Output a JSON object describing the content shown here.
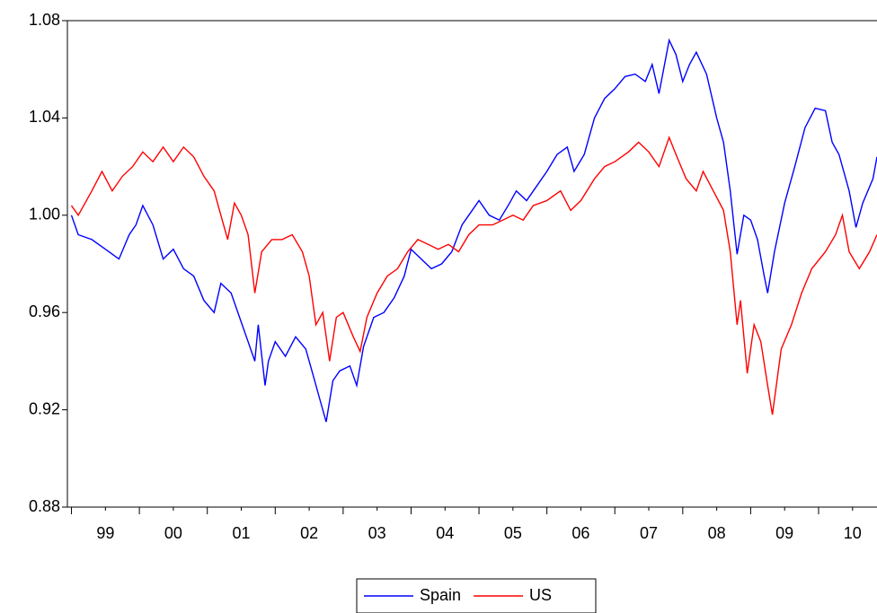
{
  "chart_data": {
    "type": "line",
    "xlim": [
      1998.94,
      2010.86
    ],
    "ylim": [
      0.88,
      1.08
    ],
    "yticks": [
      0.88,
      0.92,
      0.96,
      {
        "value": 1,
        "label": "1.00"
      },
      1.04,
      1.08
    ],
    "xticks": [
      {
        "value": 1999.5,
        "label": "99"
      },
      {
        "value": 2000.5,
        "label": "00"
      },
      {
        "value": 2001.5,
        "label": "01"
      },
      {
        "value": 2002.5,
        "label": "02"
      },
      {
        "value": 2003.5,
        "label": "03"
      },
      {
        "value": 2004.5,
        "label": "04"
      },
      {
        "value": 2005.5,
        "label": "05"
      },
      {
        "value": 2006.5,
        "label": "06"
      },
      {
        "value": 2007.5,
        "label": "07"
      },
      {
        "value": 2008.5,
        "label": "08"
      },
      {
        "value": 2009.5,
        "label": "09"
      },
      {
        "value": 2010.5,
        "label": "10"
      }
    ],
    "legend": "bottom",
    "series": [
      {
        "name": "Spain",
        "color": "#0000ff",
        "x": [
          1999.0,
          1999.1,
          1999.3,
          1999.5,
          1999.7,
          1999.85,
          1999.95,
          2000.05,
          2000.2,
          2000.35,
          2000.5,
          2000.65,
          2000.8,
          2000.95,
          2001.1,
          2001.2,
          2001.35,
          2001.5,
          2001.6,
          2001.7,
          2001.75,
          2001.85,
          2001.9,
          2002.0,
          2002.15,
          2002.3,
          2002.45,
          2002.55,
          2002.65,
          2002.75,
          2002.85,
          2002.95,
          2003.1,
          2003.2,
          2003.3,
          2003.45,
          2003.6,
          2003.75,
          2003.9,
          2004.0,
          2004.15,
          2004.3,
          2004.45,
          2004.6,
          2004.75,
          2004.85,
          2005.0,
          2005.15,
          2005.3,
          2005.45,
          2005.55,
          2005.7,
          2005.85,
          2006.0,
          2006.15,
          2006.3,
          2006.4,
          2006.55,
          2006.7,
          2006.85,
          2007.0,
          2007.15,
          2007.3,
          2007.45,
          2007.55,
          2007.65,
          2007.8,
          2007.9,
          2008.0,
          2008.1,
          2008.2,
          2008.35,
          2008.5,
          2008.6,
          2008.7,
          2008.8,
          2008.9,
          2009.0,
          2009.1,
          2009.2,
          2009.25,
          2009.35,
          2009.5,
          2009.65,
          2009.8,
          2009.95,
          2010.1,
          2010.2,
          2010.3,
          2010.45,
          2010.55,
          2010.65,
          2010.8,
          2010.86
        ],
        "values": [
          1.0,
          0.992,
          0.99,
          0.986,
          0.982,
          0.992,
          0.996,
          1.004,
          0.996,
          0.982,
          0.986,
          0.978,
          0.975,
          0.965,
          0.96,
          0.972,
          0.968,
          0.956,
          0.948,
          0.94,
          0.955,
          0.93,
          0.94,
          0.948,
          0.942,
          0.95,
          0.945,
          0.935,
          0.925,
          0.915,
          0.932,
          0.936,
          0.938,
          0.93,
          0.946,
          0.958,
          0.96,
          0.966,
          0.975,
          0.986,
          0.982,
          0.978,
          0.98,
          0.985,
          0.996,
          1.0,
          1.006,
          1.0,
          0.998,
          1.005,
          1.01,
          1.006,
          1.012,
          1.018,
          1.025,
          1.028,
          1.018,
          1.025,
          1.04,
          1.048,
          1.052,
          1.057,
          1.058,
          1.055,
          1.062,
          1.05,
          1.072,
          1.066,
          1.055,
          1.062,
          1.067,
          1.058,
          1.04,
          1.03,
          1.01,
          0.984,
          1.0,
          0.998,
          0.99,
          0.975,
          0.968,
          0.985,
          1.005,
          1.02,
          1.036,
          1.044,
          1.043,
          1.03,
          1.025,
          1.01,
          0.995,
          1.005,
          1.015,
          1.024
        ]
      },
      {
        "name": "US",
        "color": "#ff0000",
        "x": [
          1999.0,
          1999.1,
          1999.3,
          1999.45,
          1999.6,
          1999.75,
          1999.9,
          2000.05,
          2000.2,
          2000.35,
          2000.5,
          2000.65,
          2000.8,
          2000.95,
          2001.1,
          2001.2,
          2001.3,
          2001.4,
          2001.5,
          2001.6,
          2001.7,
          2001.8,
          2001.95,
          2002.1,
          2002.25,
          2002.4,
          2002.5,
          2002.6,
          2002.7,
          2002.8,
          2002.9,
          2003.0,
          2003.15,
          2003.25,
          2003.35,
          2003.5,
          2003.65,
          2003.8,
          2003.95,
          2004.1,
          2004.25,
          2004.4,
          2004.55,
          2004.7,
          2004.85,
          2005.0,
          2005.2,
          2005.35,
          2005.5,
          2005.65,
          2005.8,
          2006.0,
          2006.2,
          2006.35,
          2006.5,
          2006.7,
          2006.85,
          2007.0,
          2007.2,
          2007.35,
          2007.5,
          2007.65,
          2007.8,
          2007.9,
          2008.05,
          2008.2,
          2008.3,
          2008.45,
          2008.6,
          2008.7,
          2008.8,
          2008.85,
          2008.95,
          2009.05,
          2009.15,
          2009.25,
          2009.32,
          2009.45,
          2009.6,
          2009.75,
          2009.9,
          2010.1,
          2010.25,
          2010.35,
          2010.45,
          2010.6,
          2010.75,
          2010.86
        ],
        "values": [
          1.004,
          1.0,
          1.01,
          1.018,
          1.01,
          1.016,
          1.02,
          1.026,
          1.022,
          1.028,
          1.022,
          1.028,
          1.024,
          1.016,
          1.01,
          1.0,
          0.99,
          1.005,
          1.0,
          0.992,
          0.968,
          0.985,
          0.99,
          0.99,
          0.992,
          0.985,
          0.975,
          0.955,
          0.96,
          0.94,
          0.958,
          0.96,
          0.95,
          0.944,
          0.958,
          0.968,
          0.975,
          0.978,
          0.985,
          0.99,
          0.988,
          0.986,
          0.988,
          0.985,
          0.992,
          0.996,
          0.996,
          0.998,
          1.0,
          0.998,
          1.004,
          1.006,
          1.01,
          1.002,
          1.006,
          1.015,
          1.02,
          1.022,
          1.026,
          1.03,
          1.026,
          1.02,
          1.032,
          1.025,
          1.015,
          1.01,
          1.018,
          1.01,
          1.002,
          0.985,
          0.955,
          0.965,
          0.935,
          0.955,
          0.948,
          0.93,
          0.918,
          0.945,
          0.955,
          0.968,
          0.978,
          0.985,
          0.992,
          1.0,
          0.985,
          0.978,
          0.985,
          0.992
        ]
      }
    ]
  }
}
